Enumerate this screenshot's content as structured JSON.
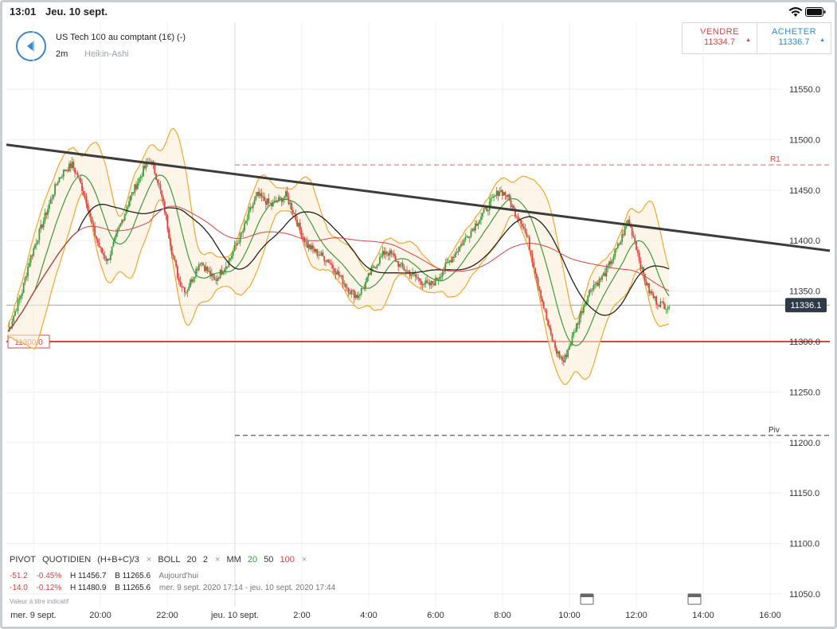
{
  "statusbar": {
    "time": "13:01",
    "date": "Jeu. 10 sept."
  },
  "instrument": {
    "name": "US Tech 100 au comptant (1€) (-)",
    "timeframe": "2m",
    "chart_type": "Heikin-Ashi"
  },
  "trade": {
    "sell_label": "VENDRE",
    "sell_price": "11334.7",
    "buy_label": "ACHETER",
    "buy_price": "11336.7"
  },
  "chart": {
    "y_ticks": [
      "11550.0",
      "11500.0",
      "11450.0",
      "11400.0",
      "11350.0",
      "11300.0",
      "11250.0",
      "11200.0",
      "11150.0",
      "11100.0",
      "11050.0"
    ],
    "x_ticks": [
      "mer. 9 sept.",
      "20:00",
      "22:00",
      "jeu. 10 sept.",
      "2:00",
      "4:00",
      "6:00",
      "8:00",
      "10:00",
      "12:00",
      "14:00",
      "16:00"
    ],
    "current_price": "11336.1",
    "level_label": "11300.0",
    "r1_label": "R1",
    "piv_label": "Piv"
  },
  "legend": {
    "pivot": "PIVOT",
    "pivot_period": "QUOTIDIEN",
    "pivot_formula": "(H+B+C)/3",
    "boll": "BOLL",
    "boll_p1": "20",
    "boll_p2": "2",
    "mm": "MM",
    "mm_1": "20",
    "mm_2": "50",
    "mm_3": "100",
    "close": "×"
  },
  "stats": {
    "row1": {
      "change": "-51.2",
      "pct": "-0.45%",
      "high": "H 11456.7",
      "low": "B 11265.6",
      "period": "Aujourd'hui"
    },
    "row2": {
      "change": "-14.0",
      "pct": "-0.12%",
      "high": "H 11480.9",
      "low": "B 11265.6",
      "period": "mer. 9 sept. 2020 17:14 - jeu. 10 sept. 2020 17:44"
    }
  },
  "disclaimer": "Valeur à titre indicatif",
  "colors": {
    "up": "#3d9a3d",
    "down": "#d64545",
    "boll": "#f0a830",
    "ma50": "#222222",
    "ma100": "#d64545",
    "accent": "#2f8bd1"
  },
  "chart_data": {
    "type": "candlestick",
    "y_min": 11050,
    "y_max": 11550,
    "trendline": [
      [
        11495,
        11390
      ]
    ],
    "horizontal_levels": {
      "R1": 11475,
      "support": 11300,
      "Piv": 11207
    },
    "closes": [
      11310,
      11330,
      11350,
      11380,
      11400,
      11420,
      11440,
      11460,
      11470,
      11475,
      11460,
      11440,
      11410,
      11390,
      11380,
      11400,
      11420,
      11440,
      11455,
      11470,
      11480,
      11460,
      11430,
      11390,
      11360,
      11350,
      11365,
      11380,
      11370,
      11360,
      11370,
      11380,
      11395,
      11410,
      11430,
      11445,
      11440,
      11435,
      11440,
      11445,
      11430,
      11410,
      11395,
      11390,
      11385,
      11380,
      11370,
      11360,
      11350,
      11345,
      11355,
      11370,
      11380,
      11390,
      11385,
      11375,
      11370,
      11365,
      11360,
      11355,
      11360,
      11370,
      11380,
      11390,
      11400,
      11410,
      11420,
      11430,
      11440,
      11450,
      11445,
      11430,
      11420,
      11400,
      11370,
      11340,
      11310,
      11290,
      11280,
      11300,
      11320,
      11340,
      11355,
      11360,
      11370,
      11385,
      11400,
      11420,
      11400,
      11370,
      11350,
      11340,
      11336
    ]
  }
}
